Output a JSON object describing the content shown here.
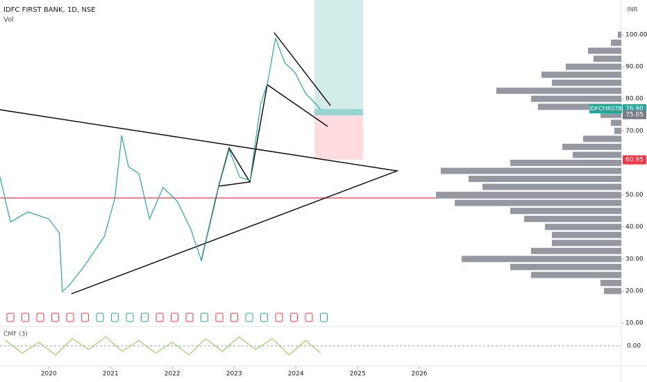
{
  "header": {
    "title": "IDFC FIRST BANK, 1D, NSE",
    "volume_label": "Vol",
    "currency": "INR",
    "indicator": "CMF (3)"
  },
  "chart_data": {
    "type": "line",
    "x": [
      2019.21,
      2019.38,
      2019.66,
      2020.0,
      2020.17,
      2020.22,
      2020.34,
      2020.56,
      2020.9,
      2021.07,
      2021.18,
      2021.29,
      2021.46,
      2021.63,
      2021.85,
      2022.08,
      2022.3,
      2022.47,
      2022.7,
      2022.92,
      2023.09,
      2023.26,
      2023.43,
      2023.54,
      2023.67,
      2023.82,
      2023.99,
      2024.16,
      2024.33,
      2024.4
    ],
    "series": [
      {
        "name": "IDFCFIRSTB",
        "color": "#26a69a",
        "values": [
          55.6,
          41.5,
          44.7,
          42.5,
          38.2,
          19.8,
          22,
          27.4,
          37,
          49,
          68.6,
          58.8,
          56.6,
          42.5,
          52.3,
          48,
          39.3,
          29.5,
          49,
          64.2,
          55.6,
          54.5,
          78.3,
          84.8,
          98.9,
          91.3,
          88.1,
          81.6,
          78.3,
          76.6
        ]
      }
    ],
    "xlim": [
      2019.21,
      2029.27
    ],
    "xticks": [
      2020,
      2021,
      2022,
      2023,
      2024,
      2025,
      2026
    ],
    "ylim": [
      8.94,
      110.84
    ],
    "yticks": [
      {
        "value": 10,
        "label": "10.00"
      },
      {
        "value": 20,
        "label": "20.00"
      },
      {
        "value": 30,
        "label": "30.00"
      },
      {
        "value": 40,
        "label": "40.00"
      },
      {
        "value": 50,
        "label": "50.00"
      },
      {
        "value": 70,
        "label": "70.00"
      },
      {
        "value": 80,
        "label": "80.00"
      },
      {
        "value": 90,
        "label": "90.00"
      },
      {
        "value": 100,
        "label": "100.00"
      }
    ],
    "markers": [
      {
        "value": 76.9,
        "label": "76.90",
        "color": "#26a69a"
      },
      {
        "value": 75.05,
        "label": "75.05",
        "color": "#787b86"
      },
      {
        "value": 60.95,
        "label": "60.95",
        "color": "#f23645"
      }
    ],
    "volume_profile": {
      "color": "#9598a1",
      "levels": [
        20,
        22.5,
        25,
        27.5,
        30,
        32.5,
        35,
        37.5,
        40,
        42.5,
        45,
        47.5,
        50,
        52.5,
        55,
        57.5,
        60,
        62.5,
        65,
        67.5,
        70,
        72.5,
        75,
        77.5,
        80,
        82.5,
        85,
        87.5,
        90,
        92.5,
        95,
        97.5,
        100
      ],
      "values": [
        25,
        30,
        130,
        160,
        230,
        130,
        100,
        100,
        110,
        140,
        160,
        240,
        267,
        200,
        220,
        260,
        160,
        70,
        85,
        55,
        10,
        15,
        30,
        120,
        130,
        180,
        100,
        115,
        80,
        40,
        48,
        15,
        5
      ]
    },
    "cmf": {
      "color": "#8bc34a",
      "ylim": [
        -1,
        1
      ],
      "yticks": [
        {
          "value": 0,
          "label": "0.00"
        }
      ],
      "x": [
        2019.3,
        2019.57,
        2019.84,
        2020.11,
        2020.38,
        2020.65,
        2020.92,
        2021.19,
        2021.46,
        2021.73,
        2022.0,
        2022.27,
        2022.54,
        2022.81,
        2023.08,
        2023.35,
        2023.62,
        2023.89,
        2024.16,
        2024.4
      ],
      "values": [
        0.3,
        -0.4,
        0.2,
        -0.5,
        0.4,
        -0.2,
        0.5,
        -0.3,
        0.3,
        -0.4,
        0.2,
        -0.5,
        0.4,
        -0.3,
        0.5,
        -0.2,
        0.4,
        -0.5,
        0.3,
        -0.4
      ]
    }
  }
}
